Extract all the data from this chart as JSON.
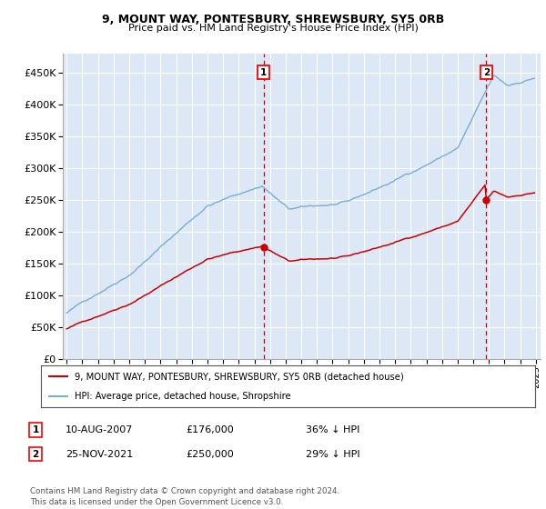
{
  "title1": "9, MOUNT WAY, PONTESBURY, SHREWSBURY, SY5 0RB",
  "title2": "Price paid vs. HM Land Registry's House Price Index (HPI)",
  "ylabel_ticks": [
    "£0",
    "£50K",
    "£100K",
    "£150K",
    "£200K",
    "£250K",
    "£300K",
    "£350K",
    "£400K",
    "£450K"
  ],
  "ytick_values": [
    0,
    50000,
    100000,
    150000,
    200000,
    250000,
    300000,
    350000,
    400000,
    450000
  ],
  "ylim": [
    0,
    480000
  ],
  "plot_bg": "#dce8f5",
  "hpi_color": "#7aadd4",
  "price_color": "#cc0000",
  "sale1_date": "10-AUG-2007",
  "sale1_price": 176000,
  "sale1_label": "36% ↓ HPI",
  "sale2_date": "25-NOV-2021",
  "sale2_price": 250000,
  "sale2_label": "29% ↓ HPI",
  "legend_line1": "9, MOUNT WAY, PONTESBURY, SHREWSBURY, SY5 0RB (detached house)",
  "legend_line2": "HPI: Average price, detached house, Shropshire",
  "footer": "Contains HM Land Registry data © Crown copyright and database right 2024.\nThis data is licensed under the Open Government Licence v3.0."
}
